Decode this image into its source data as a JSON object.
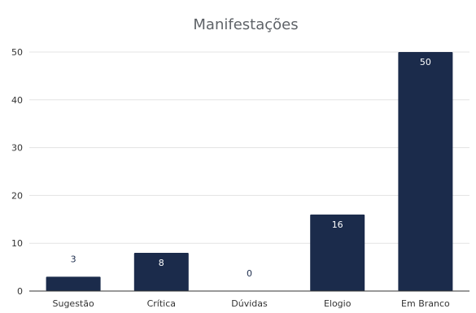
{
  "chart_data": {
    "type": "bar",
    "title": "Manifestações",
    "xlabel": "",
    "ylabel": "",
    "categories": [
      "Sugestão",
      "Crítica",
      "Dúvidas",
      "Elogio",
      "Em Branco"
    ],
    "values": [
      3,
      8,
      0,
      16,
      50
    ],
    "ylim": [
      0,
      50
    ],
    "yticks": [
      0,
      10,
      20,
      30,
      40,
      50
    ],
    "grid": true,
    "legend": "none",
    "bar_color": "#1b2b4b",
    "label_inside_color": "#ffffff",
    "label_outside_color": "#1b2b4b"
  }
}
